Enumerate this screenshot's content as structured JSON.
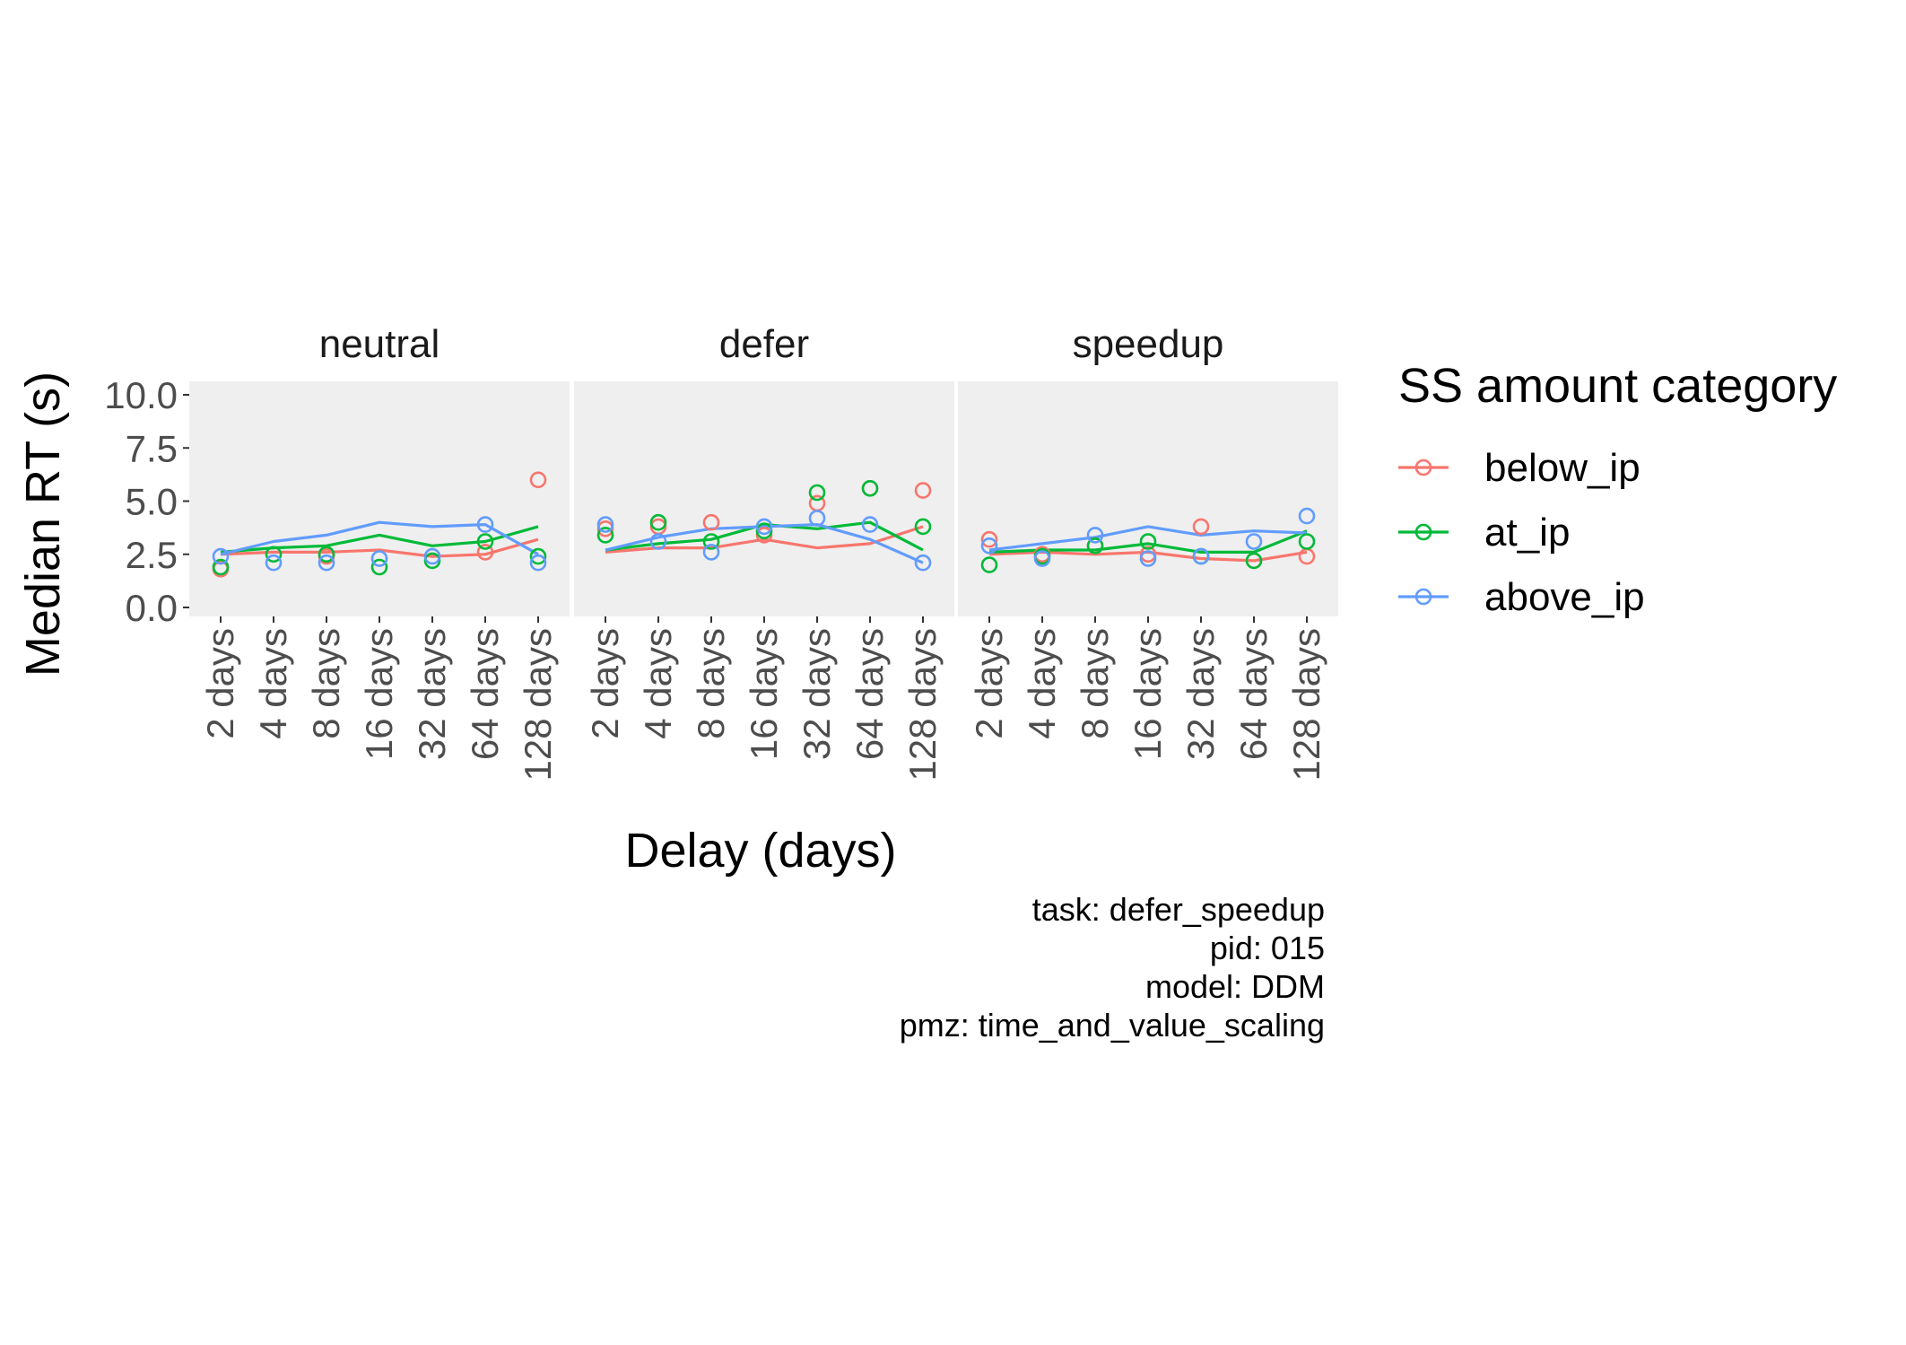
{
  "chart_data": {
    "type": "line",
    "ylabel": "Median RT (s)",
    "xlabel": "Delay (days)",
    "ylim": [
      0,
      10
    ],
    "yticks": [
      "0.0",
      "2.5",
      "5.0",
      "7.5",
      "10.0"
    ],
    "ytick_values": [
      0,
      2.5,
      5,
      7.5,
      10
    ],
    "categories": [
      "2 days",
      "4 days",
      "8 days",
      "16 days",
      "32 days",
      "64 days",
      "128 days"
    ],
    "legend": {
      "title": "SS amount category",
      "position": "right",
      "items": [
        {
          "name": "below_ip",
          "color": "#F8766D"
        },
        {
          "name": "at_ip",
          "color": "#00BA38"
        },
        {
          "name": "above_ip",
          "color": "#619CFF"
        }
      ]
    },
    "panels": [
      {
        "title": "neutral",
        "lines": {
          "below_ip": [
            2.5,
            2.6,
            2.6,
            2.7,
            2.4,
            2.5,
            3.2
          ],
          "at_ip": [
            2.6,
            2.8,
            2.9,
            3.4,
            2.9,
            3.1,
            3.8
          ],
          "above_ip": [
            2.5,
            3.1,
            3.4,
            4.0,
            3.8,
            3.9,
            2.5
          ]
        },
        "points": {
          "below_ip": [
            [
              1,
              1.8
            ],
            [
              3,
              2.4
            ],
            [
              6,
              2.6
            ],
            [
              7,
              6.0
            ]
          ],
          "at_ip": [
            [
              1,
              1.9
            ],
            [
              2,
              2.5
            ],
            [
              3,
              2.5
            ],
            [
              4,
              1.9
            ],
            [
              5,
              2.2
            ],
            [
              6,
              3.1
            ],
            [
              7,
              2.4
            ]
          ],
          "above_ip": [
            [
              1,
              2.4
            ],
            [
              2,
              2.1
            ],
            [
              3,
              2.1
            ],
            [
              4,
              2.3
            ],
            [
              5,
              2.4
            ],
            [
              6,
              3.9
            ],
            [
              7,
              2.1
            ]
          ]
        }
      },
      {
        "title": "defer",
        "lines": {
          "below_ip": [
            2.6,
            2.8,
            2.8,
            3.2,
            2.8,
            3.0,
            3.8
          ],
          "at_ip": [
            2.7,
            3.0,
            3.2,
            3.9,
            3.7,
            4.0,
            2.7
          ],
          "above_ip": [
            2.7,
            3.3,
            3.7,
            3.8,
            3.9,
            3.2,
            2.1
          ]
        },
        "points": {
          "below_ip": [
            [
              1,
              3.7
            ],
            [
              2,
              3.8
            ],
            [
              3,
              4.0
            ],
            [
              4,
              3.4
            ],
            [
              5,
              4.9
            ],
            [
              6,
              5.6
            ],
            [
              7,
              5.5
            ]
          ],
          "at_ip": [
            [
              1,
              3.4
            ],
            [
              2,
              4.0
            ],
            [
              3,
              3.1
            ],
            [
              4,
              3.6
            ],
            [
              5,
              5.4
            ],
            [
              6,
              5.6
            ],
            [
              7,
              3.8
            ]
          ],
          "above_ip": [
            [
              1,
              3.9
            ],
            [
              2,
              3.1
            ],
            [
              3,
              2.6
            ],
            [
              4,
              3.8
            ],
            [
              5,
              4.2
            ],
            [
              6,
              3.9
            ],
            [
              7,
              2.1
            ]
          ]
        }
      },
      {
        "title": "speedup",
        "lines": {
          "below_ip": [
            2.5,
            2.6,
            2.5,
            2.6,
            2.3,
            2.2,
            2.6
          ],
          "at_ip": [
            2.6,
            2.7,
            2.7,
            3.0,
            2.6,
            2.6,
            3.6
          ],
          "above_ip": [
            2.7,
            3.0,
            3.3,
            3.8,
            3.4,
            3.6,
            3.5
          ]
        },
        "points": {
          "below_ip": [
            [
              1,
              3.2
            ],
            [
              2,
              2.5
            ],
            [
              3,
              2.9
            ],
            [
              4,
              2.5
            ],
            [
              5,
              3.8
            ],
            [
              6,
              2.2
            ],
            [
              7,
              2.4
            ]
          ],
          "at_ip": [
            [
              1,
              2.0
            ],
            [
              2,
              2.4
            ],
            [
              3,
              2.9
            ],
            [
              4,
              3.1
            ],
            [
              5,
              2.4
            ],
            [
              6,
              2.2
            ],
            [
              7,
              3.1
            ]
          ],
          "above_ip": [
            [
              1,
              2.9
            ],
            [
              2,
              2.3
            ],
            [
              3,
              3.4
            ],
            [
              4,
              2.3
            ],
            [
              5,
              2.4
            ],
            [
              6,
              3.1
            ],
            [
              7,
              4.3
            ]
          ]
        }
      }
    ],
    "caption": [
      "task: defer_speedup",
      "pid: 015",
      "model: DDM",
      "pmz: time_and_value_scaling"
    ]
  }
}
